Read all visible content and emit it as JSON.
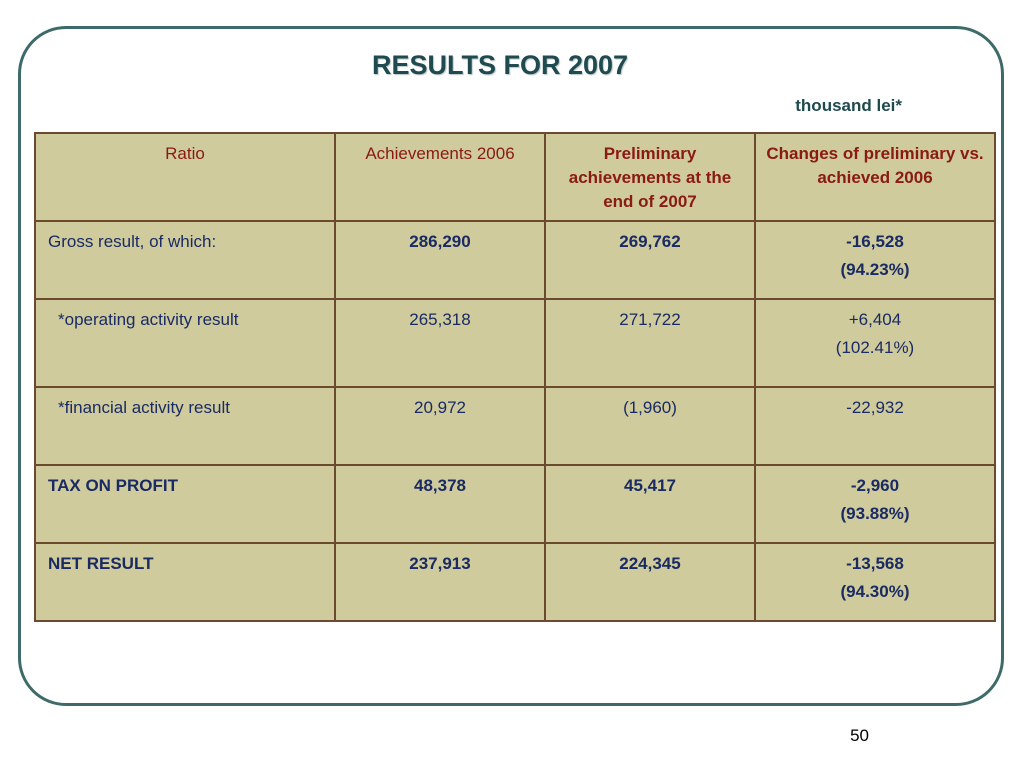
{
  "title": "RESULTS FOR 2007",
  "unit": "thousand  lei*",
  "table": {
    "headers": [
      "Ratio",
      "Achievements 2006",
      "Preliminary achievements at the end of 2007",
      "Changes of preliminary vs. achieved 2006"
    ],
    "rows": [
      {
        "label": "Gross result, of which:",
        "a2006": "286,290",
        "prelim2007": "269,762",
        "change": "-16,528",
        "change_pct": "(94.23%)"
      },
      {
        "label": "*operating activity result",
        "a2006": "265,318",
        "prelim2007": "271,722",
        "change": "+6,404",
        "change_pct": "(102.41%)"
      },
      {
        "label": "*financial activity result",
        "a2006": "20,972",
        "prelim2007": "(1,960)",
        "change": "-22,932",
        "change_pct": ""
      },
      {
        "label": "TAX ON PROFIT",
        "a2006": "48,378",
        "prelim2007": "45,417",
        "change": "-2,960",
        "change_pct": "(93.88%)"
      },
      {
        "label": "NET RESULT",
        "a2006": "237,913",
        "prelim2007": "224,345",
        "change": "-13,568",
        "change_pct": "(94.30%)"
      }
    ]
  },
  "page_number": "50",
  "colors": {
    "title": "#1f4a4f",
    "header_text": "#8a1a14",
    "body_text": "#1a2a63",
    "table_bg": "#cfcb9c",
    "border": "#6b4a2f",
    "frame": "#3e6a6a"
  }
}
